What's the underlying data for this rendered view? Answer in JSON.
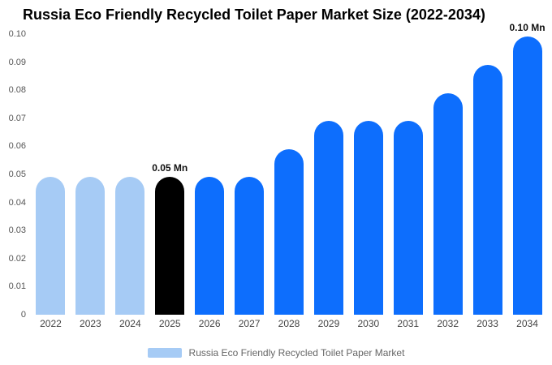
{
  "title": "Russia Eco Friendly Recycled Toilet Paper Market Size (2022-2034)",
  "colors": {
    "light_blue": "#a6cbf5",
    "primary_blue": "#0d6efd",
    "highlight_black": "#000000",
    "background": "#ffffff"
  },
  "chart_data": {
    "type": "bar",
    "title": "Russia Eco Friendly Recycled Toilet Paper Market Size (2022-2034)",
    "xlabel": "",
    "ylabel": "",
    "ylim": [
      0,
      0.1
    ],
    "grid": false,
    "legend_position": "bottom",
    "categories": [
      "2022",
      "2023",
      "2024",
      "2025",
      "2026",
      "2027",
      "2028",
      "2029",
      "2030",
      "2031",
      "2032",
      "2033",
      "2034"
    ],
    "values": [
      0.049,
      0.049,
      0.049,
      0.049,
      0.049,
      0.049,
      0.059,
      0.069,
      0.069,
      0.069,
      0.079,
      0.089,
      0.099
    ],
    "bar_colors": [
      "#a6cbf5",
      "#a6cbf5",
      "#a6cbf5",
      "#000000",
      "#0d6efd",
      "#0d6efd",
      "#0d6efd",
      "#0d6efd",
      "#0d6efd",
      "#0d6efd",
      "#0d6efd",
      "#0d6efd",
      "#0d6efd"
    ],
    "yticks": [
      0,
      0.01,
      0.02,
      0.03,
      0.04,
      0.05,
      0.06,
      0.07,
      0.08,
      0.09,
      0.1
    ],
    "ytick_labels": [
      "0",
      "0.01",
      "0.02",
      "0.03",
      "0.04",
      "0.05",
      "0.06",
      "0.07",
      "0.08",
      "0.09",
      "0.10"
    ],
    "annotations": [
      {
        "index": 3,
        "text": "0.05 Mn"
      },
      {
        "index": 12,
        "text": "0.10 Mn"
      }
    ],
    "legend": [
      {
        "label": "Russia Eco Friendly Recycled Toilet Paper Market",
        "color": "#a6cbf5"
      }
    ]
  }
}
